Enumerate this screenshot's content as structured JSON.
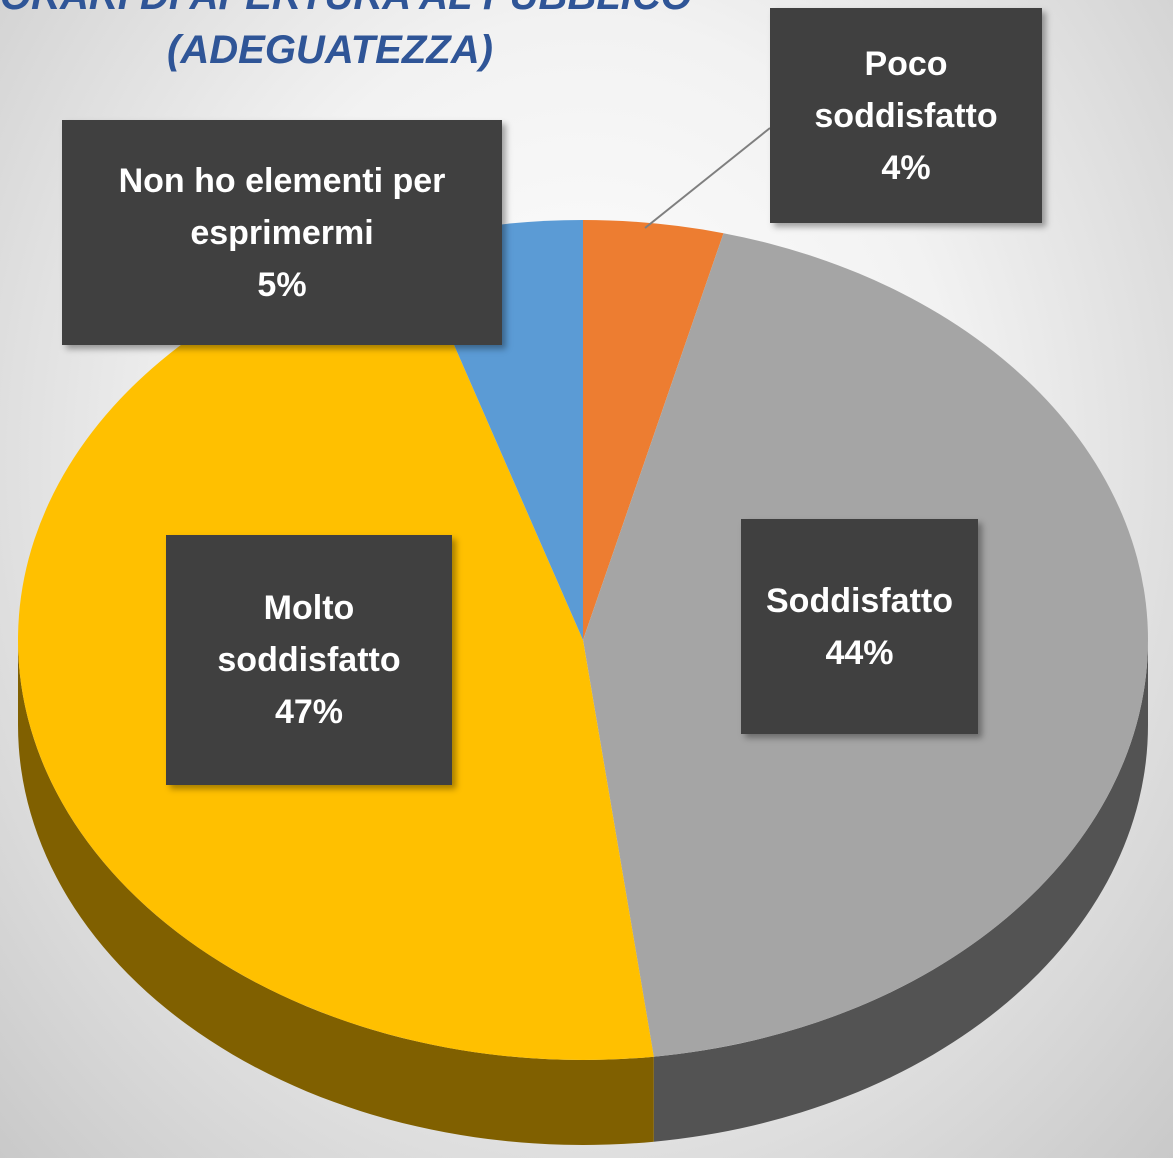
{
  "chart_data": {
    "type": "pie",
    "title": "ORARI DI APERTURA AL PUBBLICO",
    "subtitle": "(ADEGUATEZZA)",
    "categories": [
      "Poco soddisfatto",
      "Soddisfatto",
      "Molto soddisfatto",
      "Non ho elementi per esprimermi"
    ],
    "values": [
      4,
      44,
      47,
      5
    ],
    "value_labels": [
      "4%",
      "44%",
      "47%",
      "5%"
    ],
    "colors": [
      "#ed7d31",
      "#a5a5a5",
      "#ffc000",
      "#5b9bd5"
    ]
  }
}
